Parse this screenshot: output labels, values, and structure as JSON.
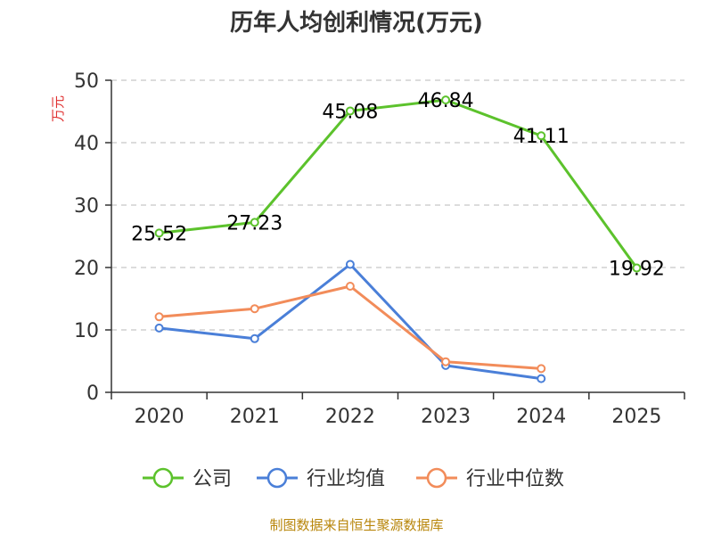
{
  "chart_data": {
    "type": "line",
    "title": "历年人均创利情况(万元)",
    "ylabel": "万元",
    "xlabel": "",
    "ylim": [
      0,
      50
    ],
    "yticks": [
      0,
      10,
      20,
      30,
      40,
      50
    ],
    "categories": [
      "2020",
      "2021",
      "2022",
      "2023",
      "2024",
      "2025"
    ],
    "series": [
      {
        "name": "公司",
        "color": "#5cc22c",
        "values": [
          25.52,
          27.23,
          45.08,
          46.84,
          41.11,
          19.92
        ],
        "labels": [
          "25.52",
          "27.23",
          "45.08",
          "46.84",
          "41.11",
          "19.92"
        ]
      },
      {
        "name": "行业均值",
        "color": "#4a7fd8",
        "values": [
          10.3,
          8.6,
          20.5,
          4.3,
          2.2,
          null
        ]
      },
      {
        "name": "行业中位数",
        "color": "#f28c5a",
        "values": [
          12.1,
          13.4,
          17.0,
          4.9,
          3.8,
          null
        ]
      }
    ],
    "grid": true,
    "legend_position": "bottom"
  },
  "source": "制图数据来自恒生聚源数据库"
}
